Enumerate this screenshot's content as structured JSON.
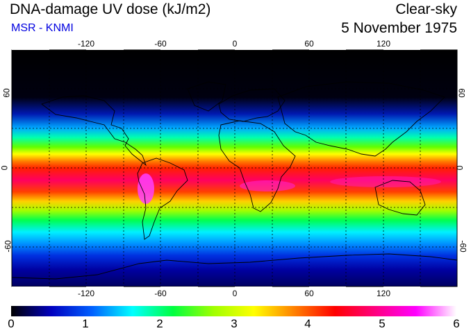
{
  "header": {
    "title": "DNA-damage UV dose (kJ/m2)",
    "credit": "MSR - KNMI",
    "sky_condition": "Clear-sky",
    "date": "5 November 1975"
  },
  "map": {
    "projection": "equirectangular",
    "lon_range": [
      -180,
      180
    ],
    "lat_range": [
      -90,
      90
    ],
    "lon_ticks": [
      "-120",
      "-60",
      "0",
      "60",
      "120"
    ],
    "lat_ticks": [
      "60",
      "0",
      "-60"
    ],
    "gridlines": "dotted, every 30 degrees"
  },
  "colorbar": {
    "min": 0,
    "max": 6,
    "labels": [
      "0",
      "1",
      "2",
      "3",
      "4",
      "5",
      "6"
    ],
    "colors": [
      "#000000",
      "#0000c0",
      "#0060ff",
      "#00ffff",
      "#00ff40",
      "#a0ff00",
      "#ffff00",
      "#ff8000",
      "#ff0000",
      "#ff0080",
      "#ff00ff",
      "#ffffff"
    ]
  }
}
